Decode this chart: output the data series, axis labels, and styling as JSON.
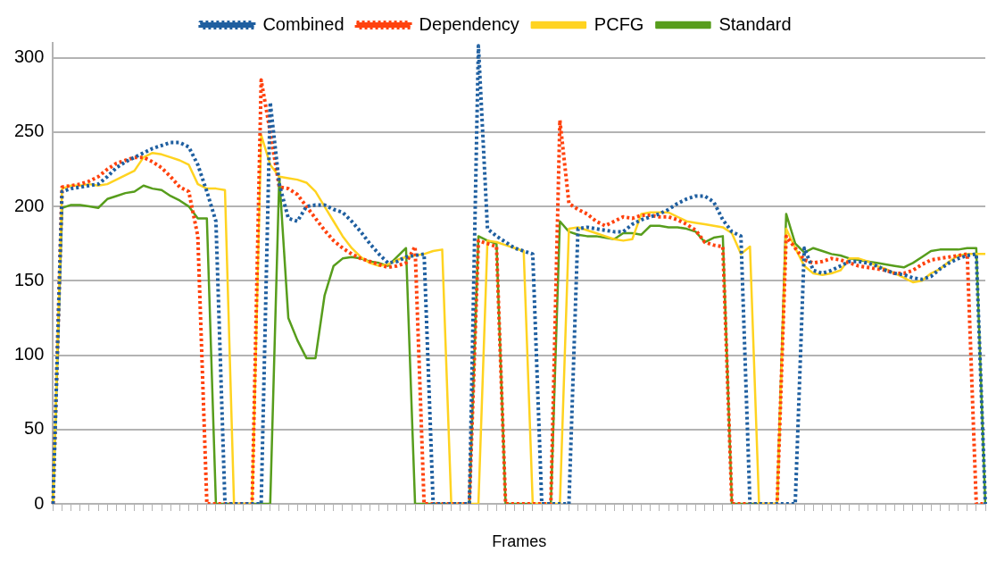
{
  "chart_data": {
    "type": "line",
    "xlabel": "Frames",
    "categories": [
      null,
      null,
      null,
      null,
      null,
      null,
      null,
      null,
      null,
      null,
      null,
      null,
      null,
      null,
      null,
      null,
      null,
      null,
      null,
      null,
      null,
      null,
      null,
      null,
      null,
      null,
      null,
      null,
      null,
      null,
      null,
      null,
      null,
      null,
      null,
      null,
      null,
      null,
      null,
      null,
      null,
      null,
      null,
      null,
      null,
      null,
      null,
      null,
      null,
      null,
      null,
      null,
      null,
      null,
      null,
      null,
      null,
      null,
      null,
      null,
      null,
      null,
      null,
      null,
      null,
      null,
      null,
      null,
      null,
      null,
      null,
      null,
      null,
      null,
      null,
      null,
      null,
      null,
      null,
      null,
      null,
      null,
      null,
      null,
      null,
      null,
      null,
      null,
      null,
      null,
      null,
      null,
      null,
      null,
      null,
      null,
      null,
      null,
      null,
      null,
      null,
      null,
      null,
      null
    ],
    "ylim": [
      0,
      310
    ],
    "yticks": [
      0,
      50,
      100,
      150,
      200,
      250,
      300
    ],
    "grid": "y",
    "legend": "top",
    "marker": "none",
    "series": [
      {
        "name": "Combined",
        "color": "#1f5fa0",
        "line_style": "dotted",
        "values": [
          0,
          210,
          212,
          213,
          214,
          215,
          220,
          226,
          230,
          233,
          236,
          239,
          241,
          243,
          243,
          240,
          228,
          210,
          190,
          0,
          0,
          0,
          0,
          0,
          270,
          215,
          192,
          190,
          200,
          201,
          201,
          198,
          196,
          190,
          183,
          175,
          168,
          162,
          163,
          166,
          167,
          168,
          0,
          0,
          0,
          0,
          0,
          308,
          185,
          180,
          176,
          172,
          170,
          168,
          0,
          0,
          0,
          0,
          185,
          186,
          185,
          184,
          183,
          183,
          188,
          191,
          193,
          195,
          198,
          202,
          205,
          207,
          207,
          203,
          191,
          183,
          180,
          0,
          0,
          0,
          0,
          0,
          0,
          172,
          157,
          155,
          157,
          160,
          163,
          163,
          162,
          160,
          157,
          155,
          154,
          152,
          151,
          153,
          158,
          162,
          165,
          167,
          168,
          0
        ]
      },
      {
        "name": "Dependency",
        "color": "#ff420e",
        "line_style": "dotted",
        "values": [
          0,
          213,
          214,
          215,
          217,
          220,
          225,
          229,
          231,
          233,
          233,
          230,
          226,
          220,
          213,
          210,
          180,
          0,
          0,
          0,
          0,
          0,
          0,
          285,
          250,
          213,
          212,
          208,
          200,
          192,
          184,
          177,
          172,
          168,
          165,
          163,
          161,
          159,
          160,
          162,
          173,
          0,
          0,
          0,
          0,
          0,
          0,
          177,
          175,
          173,
          0,
          0,
          0,
          0,
          0,
          0,
          258,
          202,
          198,
          195,
          190,
          187,
          190,
          193,
          192,
          194,
          194,
          193,
          193,
          191,
          188,
          184,
          176,
          174,
          173,
          0,
          0,
          0,
          0,
          0,
          0,
          180,
          172,
          164,
          162,
          163,
          165,
          164,
          162,
          160,
          159,
          158,
          157,
          155,
          155,
          157,
          161,
          164,
          165,
          166,
          167,
          168,
          0,
          0
        ]
      },
      {
        "name": "PCFG",
        "color": "#ffd320",
        "line_style": "solid",
        "values": [
          0,
          212,
          214,
          214,
          215,
          214,
          215,
          218,
          221,
          224,
          233,
          236,
          235,
          233,
          231,
          228,
          215,
          212,
          212,
          211,
          0,
          0,
          0,
          248,
          228,
          220,
          219,
          218,
          216,
          210,
          200,
          190,
          180,
          172,
          166,
          162,
          160,
          161,
          164,
          166,
          167,
          168,
          170,
          171,
          0,
          0,
          0,
          0,
          177,
          176,
          174,
          172,
          170,
          0,
          0,
          0,
          0,
          185,
          186,
          184,
          182,
          180,
          178,
          177,
          178,
          195,
          196,
          196,
          196,
          193,
          190,
          189,
          188,
          187,
          186,
          182,
          168,
          173,
          0,
          0,
          0,
          185,
          172,
          160,
          155,
          154,
          155,
          157,
          165,
          165,
          163,
          160,
          158,
          155,
          152,
          149,
          150,
          155,
          158,
          163,
          167,
          168,
          168,
          168
        ]
      },
      {
        "name": "Standard",
        "color": "#579d1c",
        "line_style": "solid",
        "values": [
          0,
          199,
          201,
          201,
          200,
          199,
          205,
          207,
          209,
          210,
          214,
          212,
          211,
          207,
          204,
          200,
          192,
          192,
          0,
          0,
          0,
          0,
          0,
          0,
          0,
          220,
          125,
          110,
          98,
          98,
          140,
          160,
          165,
          166,
          165,
          163,
          162,
          160,
          166,
          172,
          0,
          0,
          0,
          0,
          0,
          0,
          0,
          180,
          177,
          175,
          0,
          0,
          0,
          0,
          0,
          0,
          190,
          183,
          181,
          180,
          180,
          179,
          178,
          182,
          182,
          181,
          187,
          187,
          186,
          186,
          185,
          183,
          176,
          179,
          180,
          0,
          0,
          0,
          0,
          0,
          0,
          195,
          175,
          169,
          172,
          170,
          168,
          167,
          165,
          164,
          163,
          162,
          161,
          160,
          159,
          162,
          166,
          170,
          171,
          171,
          171,
          172,
          172,
          0
        ]
      }
    ]
  }
}
